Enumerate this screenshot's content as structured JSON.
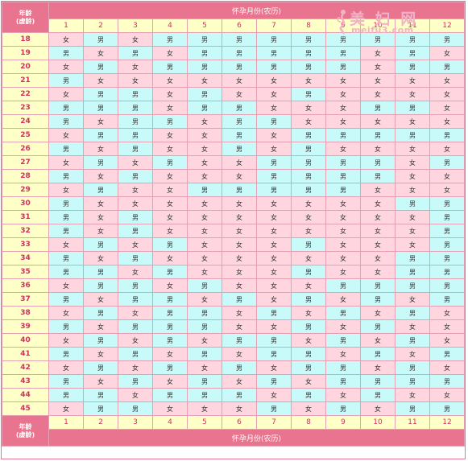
{
  "chart": {
    "header_title": "怀孕月份(农历)",
    "footer_title": "怀孕月份(农历)",
    "age_label_line1": "年龄",
    "age_label_line2": "(虚龄)",
    "months": [
      "1",
      "2",
      "3",
      "4",
      "5",
      "6",
      "7",
      "8",
      "9",
      "10",
      "11",
      "12"
    ],
    "boy_label": "男",
    "girl_label": "女",
    "colors": {
      "header": "#e8748f",
      "label_bg": "#ffffc8",
      "label_text": "#d23060",
      "boy_bg": "#c8fafa",
      "girl_bg": "#ffd6df"
    },
    "rows": [
      {
        "age": "18",
        "cells": [
          "女",
          "男",
          "女",
          "男",
          "男",
          "男",
          "男",
          "男",
          "男",
          "男",
          "男",
          "男"
        ]
      },
      {
        "age": "19",
        "cells": [
          "男",
          "女",
          "男",
          "女",
          "男",
          "男",
          "男",
          "男",
          "男",
          "女",
          "男",
          "女"
        ]
      },
      {
        "age": "20",
        "cells": [
          "女",
          "男",
          "女",
          "男",
          "男",
          "男",
          "男",
          "男",
          "男",
          "女",
          "男",
          "男"
        ]
      },
      {
        "age": "21",
        "cells": [
          "男",
          "女",
          "女",
          "女",
          "女",
          "女",
          "女",
          "女",
          "女",
          "女",
          "女",
          "女"
        ]
      },
      {
        "age": "22",
        "cells": [
          "女",
          "男",
          "男",
          "女",
          "男",
          "女",
          "女",
          "男",
          "女",
          "女",
          "女",
          "女"
        ]
      },
      {
        "age": "23",
        "cells": [
          "男",
          "男",
          "男",
          "女",
          "男",
          "男",
          "女",
          "女",
          "女",
          "男",
          "男",
          "女"
        ]
      },
      {
        "age": "24",
        "cells": [
          "男",
          "女",
          "男",
          "男",
          "女",
          "男",
          "男",
          "女",
          "女",
          "女",
          "女",
          "女"
        ]
      },
      {
        "age": "25",
        "cells": [
          "女",
          "男",
          "男",
          "女",
          "女",
          "男",
          "女",
          "男",
          "男",
          "男",
          "男",
          "男"
        ]
      },
      {
        "age": "26",
        "cells": [
          "男",
          "女",
          "男",
          "女",
          "女",
          "男",
          "女",
          "男",
          "女",
          "女",
          "女",
          "女"
        ]
      },
      {
        "age": "27",
        "cells": [
          "女",
          "男",
          "女",
          "男",
          "女",
          "女",
          "男",
          "男",
          "男",
          "男",
          "女",
          "男"
        ]
      },
      {
        "age": "28",
        "cells": [
          "男",
          "女",
          "男",
          "女",
          "女",
          "女",
          "男",
          "男",
          "男",
          "男",
          "女",
          "女"
        ]
      },
      {
        "age": "29",
        "cells": [
          "女",
          "男",
          "女",
          "女",
          "男",
          "男",
          "男",
          "男",
          "男",
          "女",
          "女",
          "女"
        ]
      },
      {
        "age": "30",
        "cells": [
          "男",
          "女",
          "女",
          "女",
          "女",
          "女",
          "女",
          "女",
          "女",
          "女",
          "男",
          "男"
        ]
      },
      {
        "age": "31",
        "cells": [
          "男",
          "女",
          "男",
          "女",
          "女",
          "女",
          "女",
          "女",
          "女",
          "女",
          "女",
          "男"
        ]
      },
      {
        "age": "32",
        "cells": [
          "男",
          "女",
          "男",
          "女",
          "女",
          "女",
          "女",
          "女",
          "女",
          "女",
          "女",
          "男"
        ]
      },
      {
        "age": "33",
        "cells": [
          "女",
          "男",
          "女",
          "男",
          "女",
          "女",
          "女",
          "男",
          "女",
          "女",
          "女",
          "男"
        ]
      },
      {
        "age": "34",
        "cells": [
          "男",
          "女",
          "男",
          "女",
          "女",
          "女",
          "女",
          "女",
          "女",
          "女",
          "男",
          "男"
        ]
      },
      {
        "age": "35",
        "cells": [
          "男",
          "男",
          "女",
          "男",
          "女",
          "女",
          "女",
          "男",
          "女",
          "女",
          "男",
          "男"
        ]
      },
      {
        "age": "36",
        "cells": [
          "女",
          "男",
          "男",
          "女",
          "男",
          "女",
          "女",
          "女",
          "男",
          "男",
          "男",
          "男"
        ]
      },
      {
        "age": "37",
        "cells": [
          "男",
          "女",
          "男",
          "男",
          "女",
          "男",
          "女",
          "男",
          "女",
          "男",
          "女",
          "男"
        ]
      },
      {
        "age": "38",
        "cells": [
          "女",
          "男",
          "女",
          "男",
          "男",
          "女",
          "男",
          "女",
          "男",
          "女",
          "男",
          "女"
        ]
      },
      {
        "age": "39",
        "cells": [
          "男",
          "女",
          "男",
          "男",
          "男",
          "女",
          "女",
          "男",
          "女",
          "男",
          "女",
          "女"
        ]
      },
      {
        "age": "40",
        "cells": [
          "女",
          "男",
          "女",
          "男",
          "女",
          "男",
          "男",
          "女",
          "男",
          "女",
          "男",
          "女"
        ]
      },
      {
        "age": "41",
        "cells": [
          "男",
          "女",
          "男",
          "女",
          "男",
          "女",
          "男",
          "男",
          "女",
          "男",
          "女",
          "男"
        ]
      },
      {
        "age": "42",
        "cells": [
          "女",
          "男",
          "女",
          "男",
          "女",
          "男",
          "女",
          "男",
          "男",
          "女",
          "男",
          "女"
        ]
      },
      {
        "age": "43",
        "cells": [
          "男",
          "女",
          "男",
          "女",
          "男",
          "女",
          "男",
          "女",
          "男",
          "男",
          "男",
          "男"
        ]
      },
      {
        "age": "44",
        "cells": [
          "男",
          "男",
          "女",
          "男",
          "男",
          "男",
          "女",
          "男",
          "女",
          "男",
          "女",
          "女"
        ]
      },
      {
        "age": "45",
        "cells": [
          "女",
          "男",
          "男",
          "女",
          "女",
          "女",
          "男",
          "女",
          "男",
          "女",
          "男",
          "男"
        ]
      }
    ]
  },
  "logo": {
    "main_text": "美 妇 网",
    "sub_text": "meifu3.com"
  }
}
